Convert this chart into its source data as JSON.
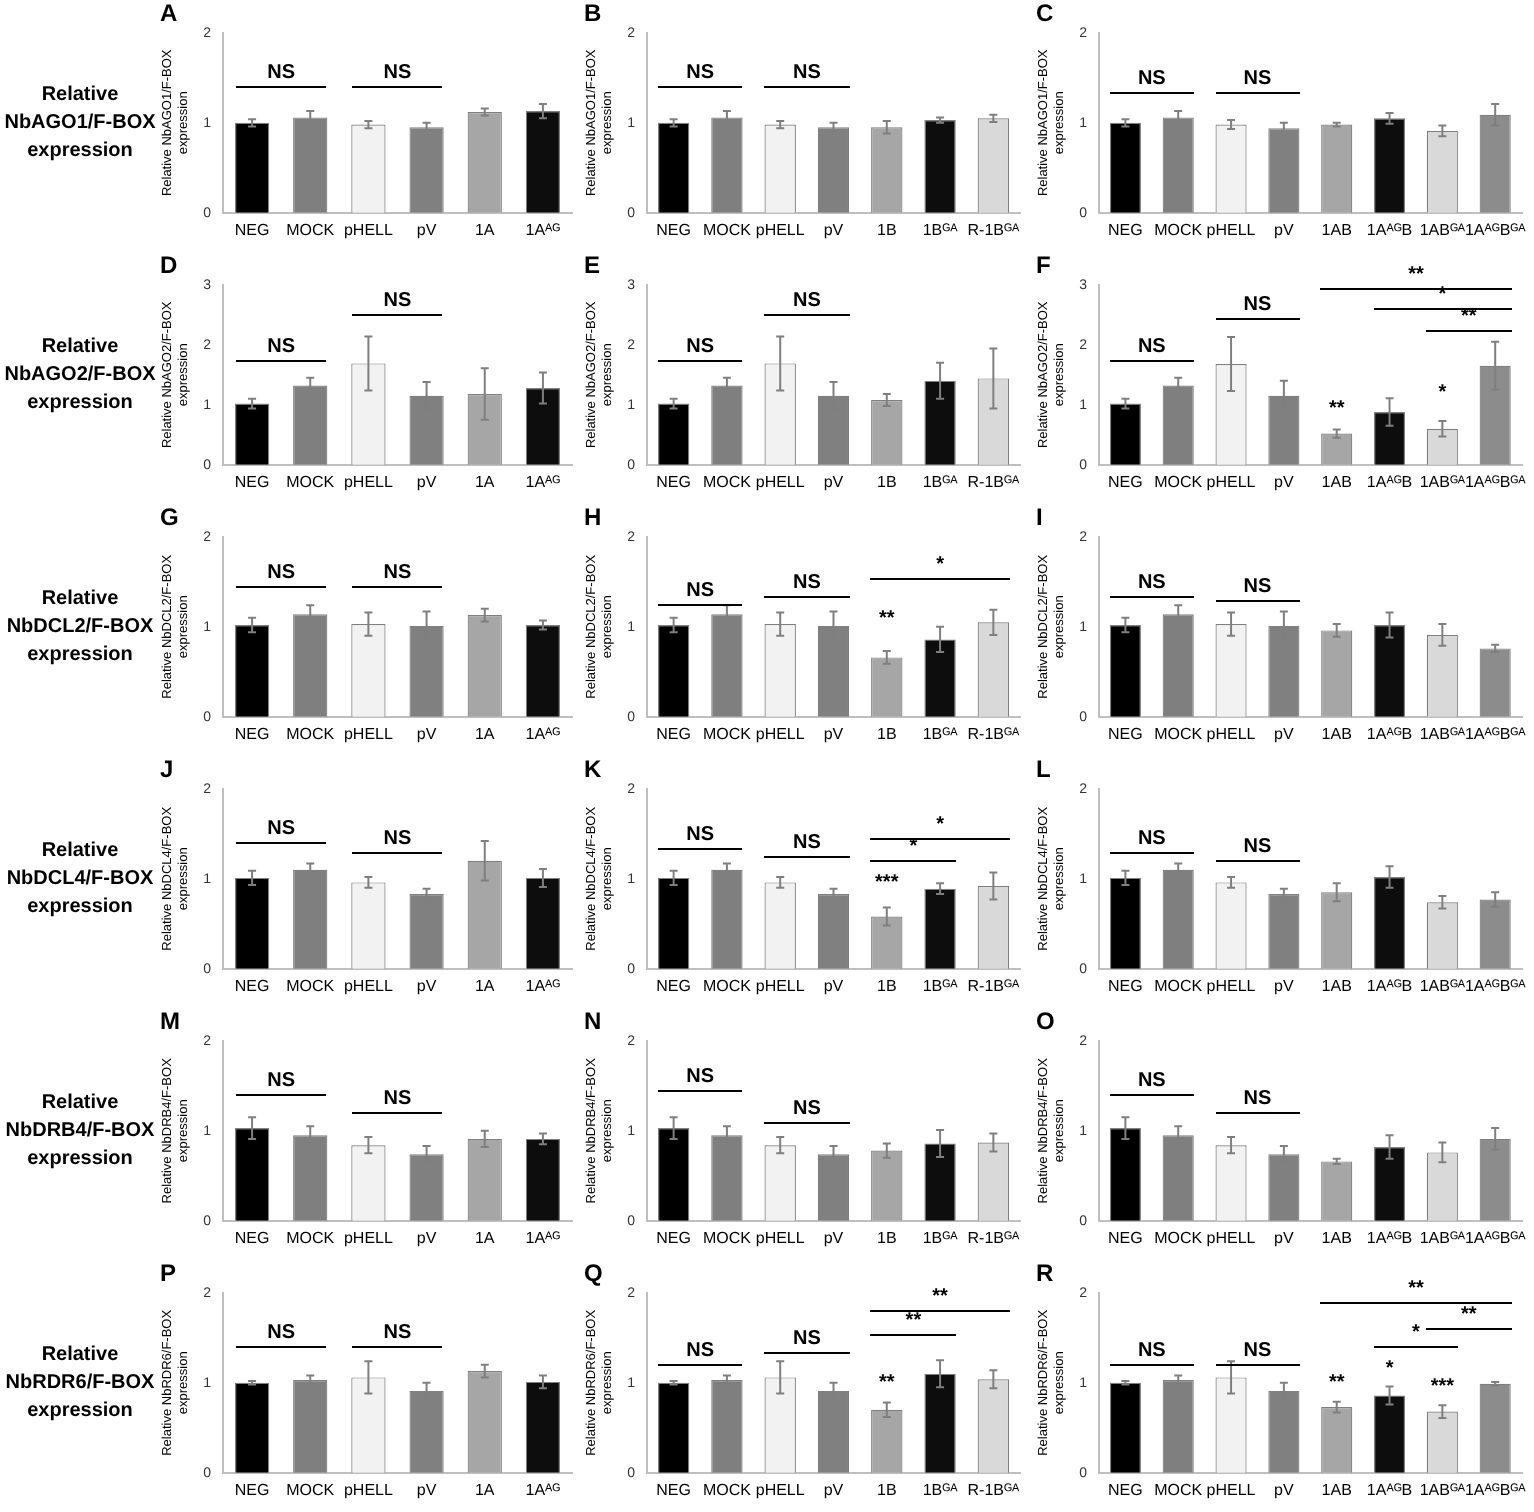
{
  "chart_data": [
    {
      "type": "other",
      "annotations": [
        "Relative NbAGO1/F-BOX expression"
      ]
    },
    {
      "type": "bar",
      "title": "A",
      "ylabel": "Relative NbAGO1/F-BOX expression",
      "categories": [
        "NEG",
        "MOCK",
        "pHELL",
        "pV",
        "1A",
        "1Aᴬᴳ"
      ],
      "values": [
        1.0,
        1.06,
        0.98,
        0.95,
        1.12,
        1.13
      ],
      "errors": [
        0.04,
        0.07,
        0.04,
        0.05,
        0.04,
        0.08
      ],
      "colors": [
        "#000000",
        "#7f7f7f",
        "#f2f2f2",
        "#808080",
        "#a6a6a6",
        "#0d0d0d"
      ],
      "ylim": [
        0,
        2
      ],
      "yticks": [
        0,
        1,
        2
      ],
      "annotations": [
        "NS",
        "NS"
      ]
    },
    {
      "type": "bar",
      "title": "B",
      "ylabel": "Relative NbAGO1/F-BOX expression",
      "categories": [
        "NEG",
        "MOCK",
        "pHELL",
        "pV",
        "1B",
        "1Bᴳᴬ",
        "R-1Bᴳᴬ"
      ],
      "values": [
        1.0,
        1.06,
        0.98,
        0.95,
        0.95,
        1.03,
        1.05
      ],
      "errors": [
        0.04,
        0.07,
        0.04,
        0.05,
        0.07,
        0.03,
        0.04
      ],
      "colors": [
        "#000000",
        "#7f7f7f",
        "#f2f2f2",
        "#808080",
        "#a6a6a6",
        "#0d0d0d",
        "#d9d9d9"
      ],
      "ylim": [
        0,
        2
      ],
      "yticks": [
        0,
        1,
        2
      ],
      "annotations": [
        "NS",
        "NS"
      ]
    },
    {
      "type": "bar",
      "title": "C",
      "ylabel": "Relative NbAGO1/F-BOX expression",
      "categories": [
        "NEG",
        "MOCK",
        "pHELL",
        "pV",
        "1AB",
        "1AᴬᴳB",
        "1ABᴳᴬ",
        "1AᴬᴳBᴳᴬ"
      ],
      "values": [
        1.0,
        1.06,
        0.98,
        0.94,
        0.98,
        1.05,
        0.91,
        1.09
      ],
      "errors": [
        0.04,
        0.07,
        0.05,
        0.06,
        0.02,
        0.06,
        0.06,
        0.12
      ],
      "colors": [
        "#000000",
        "#7f7f7f",
        "#f2f2f2",
        "#808080",
        "#a6a6a6",
        "#0d0d0d",
        "#d9d9d9",
        "#8c8c8c"
      ],
      "ylim": [
        0,
        2
      ],
      "yticks": [
        0,
        1,
        2
      ],
      "annotations": [
        "NS",
        "NS"
      ]
    },
    {
      "type": "other",
      "annotations": [
        "Relative NbAGO2/F-BOX expression"
      ]
    },
    {
      "type": "bar",
      "title": "D",
      "ylabel": "Relative NbAGO2/F-BOX expression",
      "categories": [
        "NEG",
        "MOCK",
        "pHELL",
        "pV",
        "1A",
        "1Aᴬᴳ"
      ],
      "values": [
        1.02,
        1.32,
        1.69,
        1.15,
        1.18,
        1.28
      ],
      "errors": [
        0.08,
        0.13,
        0.45,
        0.23,
        0.43,
        0.26
      ],
      "colors": [
        "#000000",
        "#7f7f7f",
        "#f2f2f2",
        "#808080",
        "#a6a6a6",
        "#0d0d0d"
      ],
      "ylim": [
        0,
        3
      ],
      "yticks": [
        0,
        1,
        2,
        3
      ],
      "annotations": [
        "NS",
        "NS"
      ]
    },
    {
      "type": "bar",
      "title": "E",
      "ylabel": "Relative NbAGO2/F-BOX expression",
      "categories": [
        "NEG",
        "MOCK",
        "pHELL",
        "pV",
        "1B",
        "1Bᴳᴬ",
        "R-1Bᴳᴬ"
      ],
      "values": [
        1.02,
        1.32,
        1.69,
        1.15,
        1.08,
        1.4,
        1.44
      ],
      "errors": [
        0.08,
        0.13,
        0.45,
        0.23,
        0.1,
        0.3,
        0.5
      ],
      "colors": [
        "#000000",
        "#7f7f7f",
        "#f2f2f2",
        "#808080",
        "#a6a6a6",
        "#0d0d0d",
        "#d9d9d9"
      ],
      "ylim": [
        0,
        3
      ],
      "yticks": [
        0,
        1,
        2,
        3
      ],
      "annotations": [
        "NS",
        "NS"
      ]
    },
    {
      "type": "bar",
      "title": "F",
      "ylabel": "Relative NbAGO2/F-BOX expression",
      "categories": [
        "NEG",
        "MOCK",
        "pHELL",
        "pV",
        "1AB",
        "1AᴬᴳB",
        "1ABᴳᴬ",
        "1AᴬᴳBᴳᴬ"
      ],
      "values": [
        1.02,
        1.32,
        1.68,
        1.15,
        0.52,
        0.88,
        0.6,
        1.65
      ],
      "errors": [
        0.08,
        0.13,
        0.45,
        0.25,
        0.07,
        0.23,
        0.13,
        0.4
      ],
      "colors": [
        "#000000",
        "#7f7f7f",
        "#f2f2f2",
        "#808080",
        "#a6a6a6",
        "#0d0d0d",
        "#d9d9d9",
        "#8c8c8c"
      ],
      "ylim": [
        0,
        3
      ],
      "yticks": [
        0,
        1,
        2,
        3
      ],
      "annotations": [
        "NS",
        "NS",
        "**",
        "*",
        "**",
        "**",
        "*"
      ]
    },
    {
      "type": "other",
      "annotations": [
        "Relative NbDCL2/F-BOX expression"
      ]
    },
    {
      "type": "bar",
      "title": "G",
      "ylabel": "Relative NbDCL2/F-BOX expression",
      "categories": [
        "NEG",
        "MOCK",
        "pHELL",
        "pV",
        "1A",
        "1Aᴬᴳ"
      ],
      "values": [
        1.02,
        1.14,
        1.03,
        1.01,
        1.13,
        1.02
      ],
      "errors": [
        0.08,
        0.1,
        0.13,
        0.16,
        0.07,
        0.05
      ],
      "colors": [
        "#000000",
        "#7f7f7f",
        "#f2f2f2",
        "#808080",
        "#a6a6a6",
        "#0d0d0d"
      ],
      "ylim": [
        0,
        2
      ],
      "yticks": [
        0,
        1,
        2
      ],
      "annotations": [
        "NS",
        "NS"
      ]
    },
    {
      "type": "bar",
      "title": "H",
      "ylabel": "Relative NbDCL2/F-BOX expression",
      "categories": [
        "NEG",
        "MOCK",
        "pHELL",
        "pV",
        "1B",
        "1Bᴳᴬ",
        "R-1Bᴳᴬ"
      ],
      "values": [
        1.02,
        1.14,
        1.03,
        1.01,
        0.66,
        0.86,
        1.05
      ],
      "errors": [
        0.08,
        0.1,
        0.13,
        0.16,
        0.07,
        0.14,
        0.14
      ],
      "colors": [
        "#000000",
        "#7f7f7f",
        "#f2f2f2",
        "#808080",
        "#a6a6a6",
        "#0d0d0d",
        "#d9d9d9"
      ],
      "ylim": [
        0,
        2
      ],
      "yticks": [
        0,
        1,
        2
      ],
      "annotations": [
        "NS",
        "NS",
        "*",
        "**"
      ]
    },
    {
      "type": "bar",
      "title": "I",
      "ylabel": "Relative NbDCL2/F-BOX expression",
      "categories": [
        "NEG",
        "MOCK",
        "pHELL",
        "pV",
        "1AB",
        "1AᴬᴳB",
        "1ABᴳᴬ",
        "1AᴬᴳBᴳᴬ"
      ],
      "values": [
        1.02,
        1.14,
        1.03,
        1.01,
        0.96,
        1.02,
        0.91,
        0.76
      ],
      "errors": [
        0.08,
        0.1,
        0.13,
        0.16,
        0.07,
        0.14,
        0.12,
        0.04
      ],
      "colors": [
        "#000000",
        "#7f7f7f",
        "#f2f2f2",
        "#808080",
        "#a6a6a6",
        "#0d0d0d",
        "#d9d9d9",
        "#8c8c8c"
      ],
      "ylim": [
        0,
        2
      ],
      "yticks": [
        0,
        1,
        2
      ],
      "annotations": [
        "NS",
        "NS"
      ]
    },
    {
      "type": "other",
      "annotations": [
        "Relative NbDCL4/F-BOX expression"
      ]
    },
    {
      "type": "bar",
      "title": "J",
      "ylabel": "Relative NbDCL4/F-BOX expression",
      "categories": [
        "NEG",
        "MOCK",
        "pHELL",
        "pV",
        "1A",
        "1Aᴬᴳ"
      ],
      "values": [
        1.01,
        1.1,
        0.96,
        0.83,
        1.2,
        1.01
      ],
      "errors": [
        0.08,
        0.07,
        0.06,
        0.06,
        0.22,
        0.1
      ],
      "colors": [
        "#000000",
        "#7f7f7f",
        "#f2f2f2",
        "#808080",
        "#a6a6a6",
        "#0d0d0d"
      ],
      "ylim": [
        0,
        2
      ],
      "yticks": [
        0,
        1,
        2
      ],
      "annotations": [
        "NS",
        "NS"
      ]
    },
    {
      "type": "bar",
      "title": "K",
      "ylabel": "Relative NbDCL4/F-BOX expression",
      "categories": [
        "NEG",
        "MOCK",
        "pHELL",
        "pV",
        "1B",
        "1Bᴳᴬ",
        "R-1Bᴳᴬ"
      ],
      "values": [
        1.01,
        1.1,
        0.96,
        0.83,
        0.58,
        0.89,
        0.92
      ],
      "errors": [
        0.08,
        0.07,
        0.06,
        0.06,
        0.1,
        0.06,
        0.15
      ],
      "colors": [
        "#000000",
        "#7f7f7f",
        "#f2f2f2",
        "#808080",
        "#a6a6a6",
        "#0d0d0d",
        "#d9d9d9"
      ],
      "ylim": [
        0,
        2
      ],
      "yticks": [
        0,
        1,
        2
      ],
      "annotations": [
        "NS",
        "NS",
        "*",
        "*",
        "***"
      ]
    },
    {
      "type": "bar",
      "title": "L",
      "ylabel": "Relative NbDCL4/F-BOX expression",
      "categories": [
        "NEG",
        "MOCK",
        "pHELL",
        "pV",
        "1AB",
        "1AᴬᴳB",
        "1ABᴳᴬ",
        "1AᴬᴳBᴳᴬ"
      ],
      "values": [
        1.01,
        1.1,
        0.96,
        0.83,
        0.85,
        1.02,
        0.74,
        0.77
      ],
      "errors": [
        0.08,
        0.07,
        0.06,
        0.06,
        0.1,
        0.12,
        0.07,
        0.08
      ],
      "colors": [
        "#000000",
        "#7f7f7f",
        "#f2f2f2",
        "#808080",
        "#a6a6a6",
        "#0d0d0d",
        "#d9d9d9",
        "#8c8c8c"
      ],
      "ylim": [
        0,
        2
      ],
      "yticks": [
        0,
        1,
        2
      ],
      "annotations": [
        "NS",
        "NS"
      ]
    },
    {
      "type": "other",
      "annotations": [
        "Relative NbDRB4/F-BOX expression"
      ]
    },
    {
      "type": "bar",
      "title": "M",
      "ylabel": "Relative NbDRB4/F-BOX expression",
      "categories": [
        "NEG",
        "MOCK",
        "pHELL",
        "pV",
        "1A",
        "1Aᴬᴳ"
      ],
      "values": [
        1.03,
        0.95,
        0.84,
        0.74,
        0.91,
        0.91
      ],
      "errors": [
        0.12,
        0.1,
        0.09,
        0.09,
        0.09,
        0.06
      ],
      "colors": [
        "#000000",
        "#7f7f7f",
        "#f2f2f2",
        "#808080",
        "#a6a6a6",
        "#0d0d0d"
      ],
      "ylim": [
        0,
        2
      ],
      "yticks": [
        0,
        1,
        2
      ],
      "annotations": [
        "NS",
        "NS"
      ]
    },
    {
      "type": "bar",
      "title": "N",
      "ylabel": "Relative NbDRB4/F-BOX expression",
      "categories": [
        "NEG",
        "MOCK",
        "pHELL",
        "pV",
        "1B",
        "1Bᴳᴬ",
        "R-1Bᴳᴬ"
      ],
      "values": [
        1.03,
        0.95,
        0.84,
        0.74,
        0.78,
        0.86,
        0.87
      ],
      "errors": [
        0.12,
        0.1,
        0.09,
        0.09,
        0.08,
        0.15,
        0.1
      ],
      "colors": [
        "#000000",
        "#7f7f7f",
        "#f2f2f2",
        "#808080",
        "#a6a6a6",
        "#0d0d0d",
        "#d9d9d9"
      ],
      "ylim": [
        0,
        2
      ],
      "yticks": [
        0,
        1,
        2
      ],
      "annotations": [
        "NS",
        "NS"
      ]
    },
    {
      "type": "bar",
      "title": "O",
      "ylabel": "Relative NbDRB4/F-BOX expression",
      "categories": [
        "NEG",
        "MOCK",
        "pHELL",
        "pV",
        "1AB",
        "1AᴬᴳB",
        "1ABᴳᴬ",
        "1AᴬᴳBᴳᴬ"
      ],
      "values": [
        1.03,
        0.95,
        0.84,
        0.74,
        0.66,
        0.82,
        0.76,
        0.91
      ],
      "errors": [
        0.12,
        0.1,
        0.09,
        0.09,
        0.03,
        0.13,
        0.11,
        0.12
      ],
      "colors": [
        "#000000",
        "#7f7f7f",
        "#f2f2f2",
        "#808080",
        "#a6a6a6",
        "#0d0d0d",
        "#d9d9d9",
        "#8c8c8c"
      ],
      "ylim": [
        0,
        2
      ],
      "yticks": [
        0,
        1,
        2
      ],
      "annotations": [
        "NS",
        "NS"
      ]
    },
    {
      "type": "other",
      "annotations": [
        "Relative NbRDR6/F-BOX expression"
      ]
    },
    {
      "type": "bar",
      "title": "P",
      "ylabel": "Relative NbRDR6/F-BOX expression",
      "categories": [
        "NEG",
        "MOCK",
        "pHELL",
        "pV",
        "1A",
        "1Aᴬᴳ"
      ],
      "values": [
        1.0,
        1.03,
        1.06,
        0.91,
        1.13,
        1.01
      ],
      "errors": [
        0.02,
        0.05,
        0.18,
        0.09,
        0.07,
        0.07
      ],
      "colors": [
        "#000000",
        "#7f7f7f",
        "#f2f2f2",
        "#808080",
        "#a6a6a6",
        "#0d0d0d"
      ],
      "ylim": [
        0,
        2
      ],
      "yticks": [
        0,
        1,
        2
      ],
      "annotations": [
        "NS",
        "NS"
      ]
    },
    {
      "type": "bar",
      "title": "Q",
      "ylabel": "Relative NbRDR6/F-BOX expression",
      "categories": [
        "NEG",
        "MOCK",
        "pHELL",
        "pV",
        "1B",
        "1Bᴳᴬ",
        "R-1Bᴳᴬ"
      ],
      "values": [
        1.0,
        1.03,
        1.06,
        0.91,
        0.7,
        1.1,
        1.04
      ],
      "errors": [
        0.02,
        0.05,
        0.18,
        0.09,
        0.08,
        0.15,
        0.1
      ],
      "colors": [
        "#000000",
        "#7f7f7f",
        "#f2f2f2",
        "#808080",
        "#a6a6a6",
        "#0d0d0d",
        "#d9d9d9"
      ],
      "ylim": [
        0,
        2
      ],
      "yticks": [
        0,
        1,
        2
      ],
      "annotations": [
        "NS",
        "NS",
        "**",
        "**",
        "**"
      ]
    },
    {
      "type": "bar",
      "title": "R",
      "ylabel": "Relative NbRDR6/F-BOX expression",
      "categories": [
        "NEG",
        "MOCK",
        "pHELL",
        "pV",
        "1AB",
        "1AᴬᴳB",
        "1ABᴳᴬ",
        "1AᴬᴳBᴳᴬ"
      ],
      "values": [
        1.0,
        1.03,
        1.06,
        0.91,
        0.73,
        0.86,
        0.68,
        0.99
      ],
      "errors": [
        0.02,
        0.05,
        0.18,
        0.09,
        0.06,
        0.1,
        0.07,
        0.02
      ],
      "colors": [
        "#000000",
        "#7f7f7f",
        "#f2f2f2",
        "#808080",
        "#a6a6a6",
        "#0d0d0d",
        "#d9d9d9",
        "#8c8c8c"
      ],
      "ylim": [
        0,
        2
      ],
      "yticks": [
        0,
        1,
        2
      ],
      "annotations": [
        "NS",
        "NS",
        "**",
        "*",
        "**",
        "**",
        "*",
        "***"
      ]
    }
  ]
}
